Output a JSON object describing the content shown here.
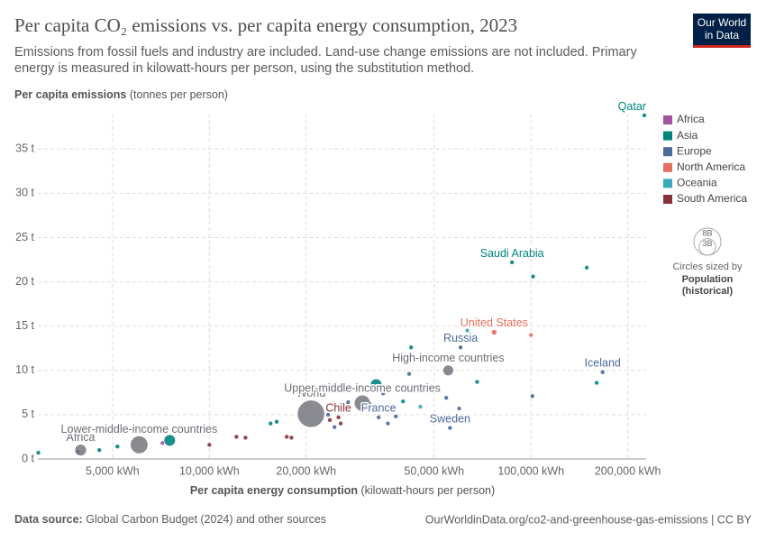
{
  "logo": [
    "Our World",
    "in Data"
  ],
  "footer": {
    "source_label": "Data source:",
    "source": "Global Carbon Budget (2024) and other sources",
    "url": "OurWorldinData.org/co2-and-greenhouse-gas-emissions | CC BY"
  },
  "chart_data": {
    "type": "scatter",
    "title": "Per capita CO₂ emissions vs. per capita energy consumption, 2023",
    "subtitle": [
      "Emissions from fossil fuels and industry are included. Land-use change emissions are not included. Primary",
      "energy is measured in kilowatt-hours per person, using the substitution method."
    ],
    "y_label": "Per capita emissions",
    "y_unit": "(tonnes per person)",
    "x_label": "Per capita energy consumption",
    "x_unit": "(kilowatt-hours per person)",
    "x_log": true,
    "grid": true,
    "xlim": [
      2930,
      228000
    ],
    "ylim": [
      0,
      39
    ],
    "xticks": [
      {
        "value": 5000,
        "label": "5,000 kWh"
      },
      {
        "value": 10000,
        "label": "10,000 kWh"
      },
      {
        "value": 20000,
        "label": "20,000 kWh"
      },
      {
        "value": 50000,
        "label": "50,000 kWh"
      },
      {
        "value": 100000,
        "label": "100,000 kWh"
      },
      {
        "value": 200000,
        "label": "200,000 kWh"
      }
    ],
    "yticks": [
      {
        "value": 0,
        "label": "0 t"
      },
      {
        "value": 5,
        "label": "5 t"
      },
      {
        "value": 10,
        "label": "10 t"
      },
      {
        "value": 15,
        "label": "15 t"
      },
      {
        "value": 20,
        "label": "20 t"
      },
      {
        "value": 25,
        "label": "25 t"
      },
      {
        "value": 30,
        "label": "30 t"
      },
      {
        "value": 35,
        "label": "35 t"
      }
    ],
    "legend": "right",
    "size_legend": {
      "values": [
        {
          "value": 8000000000,
          "label": "8B"
        },
        {
          "value": 3000000000,
          "label": "3B"
        }
      ],
      "title": "Circles sized by",
      "variable": "Population",
      "note": "(historical)"
    },
    "series": [
      {
        "name": "Africa",
        "color": "#a2559c",
        "x": [
          7150,
          3900
        ],
        "values": [
          1.8,
          0.8
        ],
        "sizes": [
          30000000,
          20000000
        ],
        "labels": [
          null,
          null
        ]
      },
      {
        "name": "Asia",
        "color": "#00847e",
        "x": [
          225000,
          87300,
          33000,
          7530,
          2940,
          4550,
          5180,
          15500,
          16200,
          40000,
          42400,
          52000,
          68000,
          101500,
          149000,
          160000
        ],
        "values": [
          38.8,
          22.2,
          8.4,
          2.1,
          0.7,
          1.0,
          1.4,
          4.0,
          4.2,
          6.5,
          12.6,
          11.2,
          8.7,
          20.6,
          21.6,
          8.6
        ],
        "sizes": [
          2700000,
          33000000,
          1420000000,
          1440000000,
          17000000,
          50000000,
          27000000,
          100000000,
          30000000,
          10000000,
          5000000,
          4000000,
          5000000,
          10000000,
          4000000,
          1500000
        ],
        "labels": [
          "Qatar",
          "Saudi Arabia",
          null,
          null,
          null,
          null,
          null,
          null,
          null,
          null,
          null,
          null,
          null,
          null,
          null,
          null
        ]
      },
      {
        "name": "Europe",
        "color": "#4c6a9c",
        "x": [
          60400,
          167000,
          33600,
          56000,
          24500,
          23400,
          27000,
          31500,
          34700,
          35900,
          41800,
          54500,
          59800,
          101000,
          38000
        ],
        "values": [
          12.6,
          9.8,
          4.7,
          3.5,
          3.6,
          5.0,
          6.4,
          6.2,
          7.4,
          4.0,
          9.6,
          6.9,
          5.7,
          7.1,
          4.8
        ],
        "sizes": [
          144000000,
          400000,
          68000000,
          10500000,
          10000000,
          38000000,
          10000000,
          10000000,
          84000000,
          5000000,
          5000000,
          5000000,
          9000000,
          5500000,
          60000000
        ],
        "labels": [
          "Russia",
          "Iceland",
          "France",
          "Sweden",
          null,
          null,
          null,
          null,
          null,
          null,
          null,
          null,
          null,
          null,
          null
        ]
      },
      {
        "name": "North America",
        "color": "#e56e5a",
        "x": [
          76800,
          100000
        ],
        "values": [
          14.3,
          14.0
        ],
        "sizes": [
          335000000,
          40000000
        ],
        "labels": [
          "United States",
          null
        ]
      },
      {
        "name": "Oceania",
        "color": "#38aaba",
        "x": [
          45300,
          63400
        ],
        "values": [
          5.9,
          14.5
        ],
        "sizes": [
          5000000,
          27000000
        ],
        "labels": [
          null,
          null
        ]
      },
      {
        "name": "South America",
        "color": "#883039",
        "x": [
          25200,
          10000,
          12140,
          12950,
          17400,
          18000,
          23700,
          25600
        ],
        "values": [
          4.7,
          1.6,
          2.5,
          2.4,
          2.5,
          2.4,
          4.4,
          4.0
        ],
        "sizes": [
          19600000,
          10000000,
          10000000,
          10000000,
          216000000,
          20000000,
          45000000,
          50000000
        ],
        "labels": [
          "Chile",
          null,
          null,
          null,
          null,
          null,
          null,
          null
        ]
      }
    ],
    "aggregates": {
      "color": "#6d6d75",
      "x": [
        3980,
        6050,
        20700,
        29900,
        55300
      ],
      "values": [
        1.0,
        1.6,
        5.1,
        6.3,
        10.0
      ],
      "sizes": [
        1460000000,
        3400000000,
        8100000000,
        2800000000,
        1240000000
      ],
      "labels": [
        "Africa",
        "Lower-middle-income countries",
        "World",
        "Upper-middle-income countries",
        "High-income countries"
      ]
    }
  }
}
